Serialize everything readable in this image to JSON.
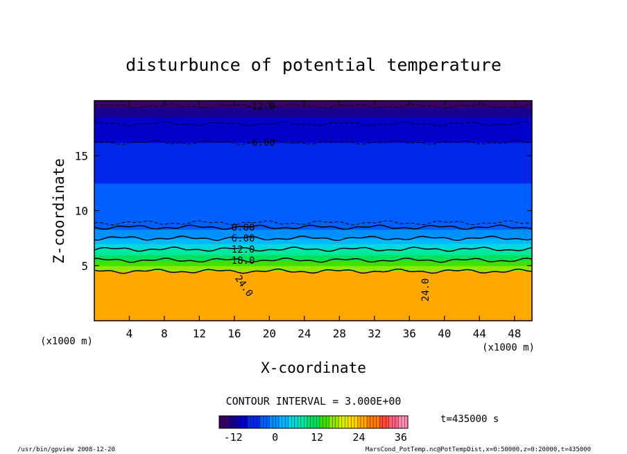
{
  "chart_data": {
    "type": "heatmap",
    "title": "disturbunce of potential temperature",
    "xlabel": "X-coordinate",
    "ylabel": "Z-coordinate",
    "x_units_left": "(x1000 m)",
    "x_units_right": "(x1000 m)",
    "xlim": [
      0,
      50
    ],
    "ylim": [
      0,
      20
    ],
    "x_ticks": [
      4,
      8,
      12,
      16,
      20,
      24,
      28,
      32,
      36,
      40,
      44,
      48
    ],
    "y_ticks": [
      5,
      10,
      15
    ],
    "color_levels": [
      {
        "z_top": 1,
        "value": 25
      },
      {
        "z_top": 4.5,
        "value": 24
      },
      {
        "z_top": 5.0,
        "value": 18
      },
      {
        "z_top": 5.5,
        "value": 15
      },
      {
        "z_top": 6.0,
        "value": 12
      },
      {
        "z_top": 6.5,
        "value": 9
      },
      {
        "z_top": 7.0,
        "value": 6
      },
      {
        "z_top": 7.5,
        "value": 3
      },
      {
        "z_top": 8.3,
        "value": 0
      },
      {
        "z_top": 8.8,
        "value": -2
      },
      {
        "z_top": 10.5,
        "value": -3
      },
      {
        "z_top": 12.5,
        "value": -4
      },
      {
        "z_top": 14.5,
        "value": -5
      },
      {
        "z_top": 16.2,
        "value": -6
      },
      {
        "z_top": 17.5,
        "value": -8
      },
      {
        "z_top": 18.5,
        "value": -10
      },
      {
        "z_top": 19.4,
        "value": -12
      },
      {
        "z_top": 20,
        "value": -14
      }
    ],
    "contours": [
      {
        "z": 19.5,
        "label": "-12.0",
        "label_x": 19,
        "dashed": true
      },
      {
        "z": 17.9,
        "label": "",
        "dashed": true
      },
      {
        "z": 16.2,
        "label": "-6.00",
        "label_x": 19,
        "dashed": true
      },
      {
        "z": 8.9,
        "label": "",
        "dashed": true
      },
      {
        "z": 8.5,
        "label": "0.00",
        "label_x": 17,
        "dashed": false
      },
      {
        "z": 7.5,
        "label": "6.00",
        "label_x": 17,
        "dashed": false
      },
      {
        "z": 6.5,
        "label": "12.0",
        "label_x": 17,
        "dashed": false
      },
      {
        "z": 5.5,
        "label": "18.0",
        "label_x": 17,
        "dashed": false
      },
      {
        "z": 4.5,
        "label": "",
        "dashed": false
      }
    ],
    "contour_labels_extra": [
      {
        "label": "24.0",
        "x": 16.8,
        "z": 3.0,
        "angle": 55
      },
      {
        "label": "24.0",
        "x": 38.2,
        "z": 2.8,
        "angle": -90
      }
    ],
    "contour_interval": "CONTOUR INTERVAL = 3.000E+00",
    "colorbar": {
      "min": -16,
      "max": 38,
      "ticks": [
        -12,
        0,
        12,
        24,
        36
      ],
      "colors": [
        "#3a0066",
        "#1a0090",
        "#0000c8",
        "#0028e6",
        "#0060ff",
        "#0090ff",
        "#00b8ff",
        "#00d8e0",
        "#00e8a0",
        "#00e060",
        "#40e000",
        "#90e800",
        "#d8f000",
        "#ffd800",
        "#ffa800",
        "#ff7a00",
        "#ff4a3a",
        "#ff6080",
        "#ff8cb0"
      ]
    },
    "time_label": "t=435000 s"
  },
  "footer": {
    "left": "/usr/bin/gpview   2008-12-20",
    "right": "MarsCond_PotTemp.nc@PotTempDist,x=0:50000,z=0:20000,t=435000"
  }
}
